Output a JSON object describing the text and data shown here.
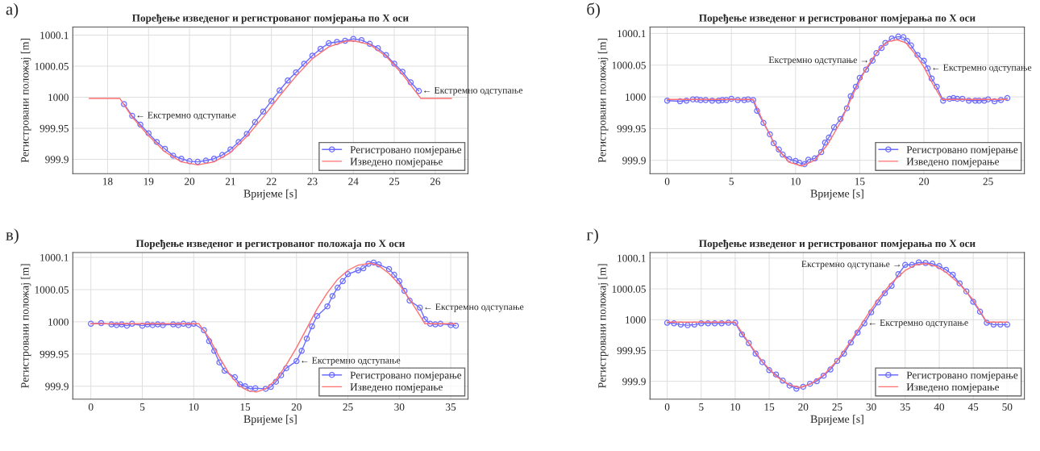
{
  "chart_data": [
    {
      "type": "line",
      "title": "Поређење изведеног и регистрованог помјерања по X оси",
      "xlabel": "Вријеме [s]",
      "ylabel": "Регистровани положај [m]",
      "xlim": [
        17.15,
        26.8
      ],
      "ylim": [
        999.877,
        1000.113
      ],
      "xticks": [
        18,
        19,
        20,
        21,
        22,
        23,
        24,
        25,
        26
      ],
      "yticks": [
        999.9,
        999.95,
        1000,
        1000.05,
        1000.1
      ],
      "grid": true,
      "legend": "bottom right",
      "annotations": [
        "а)",
        {
          "text": "← Екстремно одступање",
          "x": 18.6,
          "y": 999.97
        },
        {
          "text": "← Екстремно одступање",
          "x": 25.6,
          "y": 1000.01
        }
      ],
      "series": [
        {
          "name": "Регистровано помјерање",
          "color": "#6b6bff",
          "marker": "circle",
          "x": [
            18.4,
            18.6,
            18.8,
            19.0,
            19.2,
            19.4,
            19.6,
            19.8,
            20.0,
            20.2,
            20.4,
            20.6,
            20.8,
            21.0,
            21.2,
            21.4,
            21.6,
            21.8,
            22.0,
            22.2,
            22.4,
            22.6,
            22.8,
            23.0,
            23.2,
            23.4,
            23.6,
            23.8,
            24.0,
            24.2,
            24.4,
            24.6,
            24.8,
            25.0,
            25.2,
            25.4,
            25.6
          ],
          "values": [
            999.989,
            999.97,
            999.956,
            999.942,
            999.928,
            999.917,
            999.906,
            999.901,
            999.897,
            999.896,
            999.898,
            999.901,
            999.907,
            999.916,
            999.928,
            999.941,
            999.96,
            999.977,
            999.994,
            1000.011,
            1000.027,
            1000.04,
            1000.054,
            1000.067,
            1000.078,
            1000.087,
            1000.089,
            1000.091,
            1000.094,
            1000.092,
            1000.086,
            1000.079,
            1000.068,
            1000.054,
            1000.041,
            1000.024,
            1000.01
          ]
        },
        {
          "name": "Изведено помјерање",
          "color": "#ff7070",
          "marker": "none",
          "x": [
            17.55,
            18.3,
            18.6,
            19.0,
            19.4,
            19.8,
            20.2,
            20.6,
            21.0,
            21.4,
            21.8,
            22.2,
            22.6,
            23.0,
            23.4,
            23.8,
            24.0,
            24.4,
            24.8,
            25.2,
            25.65,
            26.4
          ],
          "values": [
            999.998,
            999.998,
            999.968,
            999.938,
            999.912,
            999.896,
            999.891,
            999.896,
            999.911,
            999.937,
            999.968,
            1000.002,
            1000.034,
            1000.062,
            1000.081,
            1000.09,
            1000.091,
            1000.085,
            1000.066,
            1000.037,
            999.998,
            999.998
          ]
        }
      ]
    },
    {
      "type": "line",
      "title": "Поређење изведеног и регистрованог помјерања по X оси",
      "xlabel": "Вријеме [s]",
      "ylabel": "Регистровани положај [m]",
      "xlim": [
        -1.34,
        27.83
      ],
      "ylim": [
        999.879,
        1000.11
      ],
      "xticks": [
        0,
        5,
        10,
        15,
        20,
        25
      ],
      "yticks": [
        999.9,
        999.95,
        1000,
        1000.05,
        1000.1
      ],
      "grid": true,
      "legend": "bottom right",
      "annotations": [
        "б)",
        {
          "text": "Екстремно одступање →",
          "x": 16.0,
          "y": 1000.057
        },
        {
          "text": "← Екстремно одступање",
          "x": 20.3,
          "y": 1000.045
        }
      ],
      "series": [
        {
          "name": "Регистровано помјерање",
          "color": "#6b6bff",
          "marker": "circle",
          "x": [
            0,
            1.0,
            1.5,
            2.0,
            2.3,
            2.6,
            3.0,
            3.5,
            4.0,
            4.3,
            4.6,
            5.0,
            5.5,
            6.0,
            6.3,
            6.7,
            7.0,
            7.5,
            8.0,
            8.3,
            8.7,
            9.0,
            9.5,
            10.0,
            10.3,
            10.7,
            11.0,
            11.5,
            12.0,
            12.3,
            12.6,
            13.0,
            13.5,
            14.0,
            14.3,
            14.7,
            15.0,
            15.5,
            16.0,
            16.3,
            16.7,
            17.0,
            17.5,
            18.0,
            18.4,
            18.7,
            19.0,
            19.5,
            20.0,
            20.3,
            20.6,
            21.0,
            21.5,
            22.0,
            22.3,
            22.6,
            23.0,
            23.5,
            24.0,
            24.3,
            24.7,
            25.0,
            25.5,
            26.0,
            26.5
          ],
          "values": [
            999.994,
            999.993,
            999.994,
            999.996,
            999.996,
            999.995,
            999.995,
            999.994,
            999.994,
            999.995,
            999.995,
            999.997,
            999.995,
            999.995,
            999.996,
            999.995,
            999.978,
            999.959,
            999.941,
            999.927,
            999.917,
            999.909,
            999.902,
            999.899,
            999.896,
            999.894,
            999.901,
            999.903,
            999.913,
            999.928,
            999.936,
            999.952,
            999.965,
            999.982,
            1000.001,
            1000.016,
            1000.03,
            1000.043,
            1000.057,
            1000.069,
            1000.077,
            1000.085,
            1000.092,
            1000.095,
            1000.094,
            1000.088,
            1000.081,
            1000.066,
            1000.057,
            1000.045,
            1000.029,
            1000.016,
            999.994,
            999.997,
            999.998,
            999.997,
            999.997,
            999.994,
            999.994,
            999.994,
            999.994,
            999.996,
            999.993,
            999.995,
            999.998
          ]
        },
        {
          "name": "Изведено помјерање",
          "color": "#ff7070",
          "marker": "none",
          "x": [
            0,
            6.7,
            7.5,
            8.5,
            9.5,
            10.5,
            11.5,
            12.5,
            13.5,
            14.5,
            15.5,
            16.5,
            17.2,
            17.9,
            18.6,
            19.3,
            20.0,
            20.7,
            21.4,
            26.5
          ],
          "values": [
            999.996,
            999.996,
            999.96,
            999.92,
            999.897,
            999.891,
            999.9,
            999.925,
            999.96,
            1000.005,
            1000.045,
            1000.075,
            1000.087,
            1000.09,
            1000.085,
            1000.068,
            1000.047,
            1000.02,
            999.996,
            999.996
          ]
        }
      ]
    },
    {
      "type": "line",
      "title": "Поређење изведеног и регистрованог положаја по X оси",
      "xlabel": "Вријеме [s]",
      "ylabel": "Регистровани положај [m]",
      "xlim": [
        -1.76,
        36.68
      ],
      "ylim": [
        999.88,
        1000.1075
      ],
      "xticks": [
        0,
        5,
        10,
        15,
        20,
        25,
        30,
        35
      ],
      "yticks": [
        999.9,
        999.95,
        1000,
        1000.05,
        1000.1
      ],
      "grid": true,
      "legend": "bottom right",
      "annotations": [
        "в)",
        {
          "text": "← Екстремно одступање",
          "x": 20,
          "y": 999.939
        },
        {
          "text": "← Екстремно одступање",
          "x": 32,
          "y": 1000.022
        }
      ],
      "series": [
        {
          "name": "Регистровано помјерање",
          "color": "#6b6bff",
          "marker": "circle",
          "x": [
            0,
            1,
            2,
            2.5,
            3,
            3.5,
            4,
            5,
            5.5,
            6,
            6.5,
            7,
            8,
            8.5,
            9,
            9.5,
            10,
            11,
            11.5,
            12,
            12.5,
            13,
            14,
            14.5,
            15,
            15.5,
            16,
            17,
            17.5,
            18,
            18.5,
            19,
            20,
            20.5,
            21,
            21.5,
            22,
            23,
            23.5,
            24,
            24.5,
            25,
            26,
            26.5,
            27,
            27.5,
            28,
            29,
            29.5,
            30,
            30.5,
            31,
            32,
            32.5,
            33,
            33.5,
            34,
            35,
            35.5
          ],
          "values": [
            999.997,
            999.998,
            999.996,
            999.995,
            999.996,
            999.994,
            999.997,
            999.994,
            999.996,
            999.995,
            999.996,
            999.995,
            999.996,
            999.995,
            999.997,
            999.995,
            999.997,
            999.987,
            999.97,
            999.955,
            999.937,
            999.924,
            999.914,
            999.903,
            999.9,
            999.896,
            999.897,
            999.896,
            999.899,
            999.907,
            999.917,
            999.928,
            999.939,
            999.955,
            999.974,
            999.993,
            1000.009,
            1000.024,
            1000.04,
            1000.053,
            1000.063,
            1000.074,
            1000.08,
            1000.083,
            1000.09,
            1000.092,
            1000.089,
            1000.082,
            1000.073,
            1000.063,
            1000.048,
            1000.033,
            1000.022,
            1000.004,
            999.997,
            999.996,
            999.997,
            999.995,
            999.994
          ]
        },
        {
          "name": "Изведено помјерање",
          "color": "#ff7070",
          "marker": "none",
          "x": [
            0,
            10.5,
            11.5,
            12.5,
            13.5,
            14.5,
            15.3,
            16.1,
            17,
            18,
            19,
            20,
            21,
            22,
            23,
            24,
            25,
            26,
            27.2,
            28,
            29,
            30,
            31,
            31.8,
            32.5,
            35.5
          ],
          "values": [
            999.997,
            999.997,
            999.975,
            999.945,
            999.918,
            999.9,
            999.893,
            999.891,
            999.896,
            999.91,
            999.933,
            999.96,
            999.99,
            1000.02,
            1000.045,
            1000.066,
            1000.08,
            1000.088,
            1000.091,
            1000.087,
            1000.075,
            1000.058,
            1000.035,
            1000.015,
            999.997,
            999.997
          ]
        }
      ]
    },
    {
      "type": "line",
      "title": "Поређење изведеног и регистрованог помјерања по X оси",
      "xlabel": "Вријеме [s]",
      "ylabel": "Регистровани положај [m]",
      "xlim": [
        -2.53,
        52.53
      ],
      "ylim": [
        999.871,
        1000.109
      ],
      "xticks": [
        0,
        5,
        10,
        15,
        20,
        25,
        30,
        35,
        40,
        45,
        50
      ],
      "yticks": [
        999.9,
        999.95,
        1000,
        1000.05,
        1000.1
      ],
      "grid": true,
      "legend": "bottom right",
      "annotations": [
        "г)",
        {
          "text": "Екстремно одступање →",
          "x": 35,
          "y": 1000.089
        },
        {
          "text": "← Екстремно одступање",
          "x": 29,
          "y": 999.994
        }
      ],
      "series": [
        {
          "name": "Регистровано помјерање",
          "color": "#6b6bff",
          "marker": "circle",
          "x": [
            0,
            1,
            2,
            3,
            4,
            5,
            6,
            7,
            8,
            9,
            10,
            11,
            12,
            13,
            14,
            15,
            16,
            17,
            18,
            19,
            20,
            21,
            22,
            23,
            24,
            25,
            26,
            27,
            28,
            29,
            30,
            31,
            32,
            33,
            34,
            35,
            36,
            37,
            38,
            39,
            40,
            41,
            42,
            43,
            44,
            45,
            46,
            47,
            48,
            49,
            50
          ],
          "values": [
            999.995,
            999.994,
            999.992,
            999.991,
            999.992,
            999.994,
            999.994,
            999.994,
            999.994,
            999.995,
            999.995,
            999.976,
            999.962,
            999.945,
            999.931,
            999.918,
            999.911,
            999.901,
            999.893,
            999.888,
            999.891,
            999.896,
            999.9,
            999.909,
            999.919,
            999.933,
            999.945,
            999.963,
            999.979,
            999.994,
            1000.012,
            1000.028,
            1000.043,
            1000.055,
            1000.074,
            1000.089,
            1000.089,
            1000.093,
            1000.092,
            1000.091,
            1000.087,
            1000.081,
            1000.073,
            1000.059,
            1000.046,
            1000.029,
            1000.013,
            999.995,
            999.992,
            999.992,
            999.992
          ]
        },
        {
          "name": "Изведено помјерање",
          "color": "#ff7070",
          "marker": "none",
          "x": [
            0,
            10,
            12,
            14,
            16,
            18,
            19.5,
            21,
            23,
            25,
            27,
            29,
            31,
            33,
            35,
            36.5,
            38,
            39.5,
            41,
            43,
            45,
            47,
            50
          ],
          "values": [
            999.996,
            999.996,
            999.962,
            999.932,
            999.908,
            999.894,
            999.89,
            999.895,
            999.91,
            999.934,
            999.965,
            1000.0,
            1000.033,
            1000.06,
            1000.08,
            1000.089,
            1000.091,
            1000.087,
            1000.077,
            1000.058,
            1000.032,
            999.996,
            999.996
          ]
        }
      ]
    }
  ]
}
